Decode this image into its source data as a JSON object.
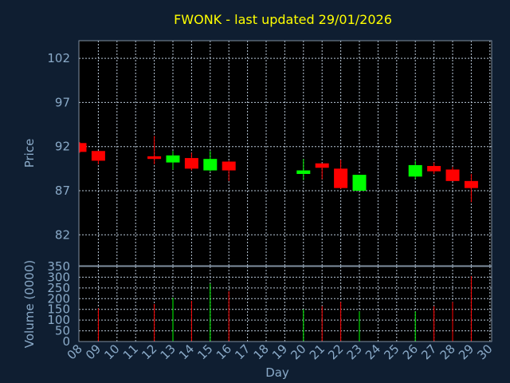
{
  "chart_data": {
    "type": "candlestick",
    "title": "FWONK - last updated 29/01/2026",
    "xlabel": "Day",
    "price_ylabel": "Price",
    "volume_ylabel": "Volume (0000)",
    "x_ticks": [
      "08",
      "09",
      "10",
      "11",
      "12",
      "13",
      "14",
      "15",
      "16",
      "17",
      "18",
      "19",
      "20",
      "21",
      "22",
      "23",
      "24",
      "25",
      "26",
      "27",
      "28",
      "29",
      "30"
    ],
    "price_ylim": [
      78.5,
      104
    ],
    "price_ticks": [
      82,
      87,
      92,
      97,
      102
    ],
    "volume_ylim": [
      0,
      350
    ],
    "volume_ticks": [
      0,
      50,
      100,
      150,
      200,
      250,
      300,
      350
    ],
    "grid": true,
    "colors": {
      "up": "#00ff00",
      "down": "#ff0000",
      "title": "#ffff00",
      "axis_text": "#8aaac8",
      "background": "#0f1e31",
      "plot_background": "#000000",
      "grid": "#b9c8d8"
    },
    "candles": [
      {
        "day": "08",
        "open": 92.4,
        "high": 92.5,
        "low": 91.3,
        "close": 91.4,
        "volume": 0
      },
      {
        "day": "09",
        "open": 91.5,
        "high": 91.5,
        "low": 90.0,
        "close": 90.4,
        "volume": 155
      },
      {
        "day": "12",
        "open": 90.9,
        "high": 93.2,
        "low": 90.0,
        "close": 90.6,
        "volume": 175
      },
      {
        "day": "13",
        "open": 90.2,
        "high": 91.5,
        "low": 89.4,
        "close": 91.0,
        "volume": 205
      },
      {
        "day": "14",
        "open": 90.7,
        "high": 91.3,
        "low": 89.3,
        "close": 89.5,
        "volume": 190
      },
      {
        "day": "15",
        "open": 89.3,
        "high": 91.5,
        "low": 89.2,
        "close": 90.6,
        "volume": 270
      },
      {
        "day": "16",
        "open": 90.3,
        "high": 90.4,
        "low": 88.1,
        "close": 89.3,
        "volume": 235
      },
      {
        "day": "20",
        "open": 88.9,
        "high": 90.6,
        "low": 88.2,
        "close": 89.3,
        "volume": 150
      },
      {
        "day": "21",
        "open": 90.1,
        "high": 90.1,
        "low": 88.3,
        "close": 89.6,
        "volume": 165
      },
      {
        "day": "22",
        "open": 89.5,
        "high": 90.5,
        "low": 87.2,
        "close": 87.3,
        "volume": 185
      },
      {
        "day": "23",
        "open": 87.0,
        "high": 88.8,
        "low": 87.0,
        "close": 88.8,
        "volume": 140
      },
      {
        "day": "26",
        "open": 88.6,
        "high": 90.4,
        "low": 88.3,
        "close": 89.9,
        "volume": 140
      },
      {
        "day": "27",
        "open": 89.8,
        "high": 90.2,
        "low": 88.9,
        "close": 89.2,
        "volume": 165
      },
      {
        "day": "28",
        "open": 89.4,
        "high": 89.7,
        "low": 88.1,
        "close": 88.1,
        "volume": 185
      },
      {
        "day": "29",
        "open": 88.1,
        "high": 88.9,
        "low": 85.7,
        "close": 87.3,
        "volume": 305
      }
    ]
  }
}
